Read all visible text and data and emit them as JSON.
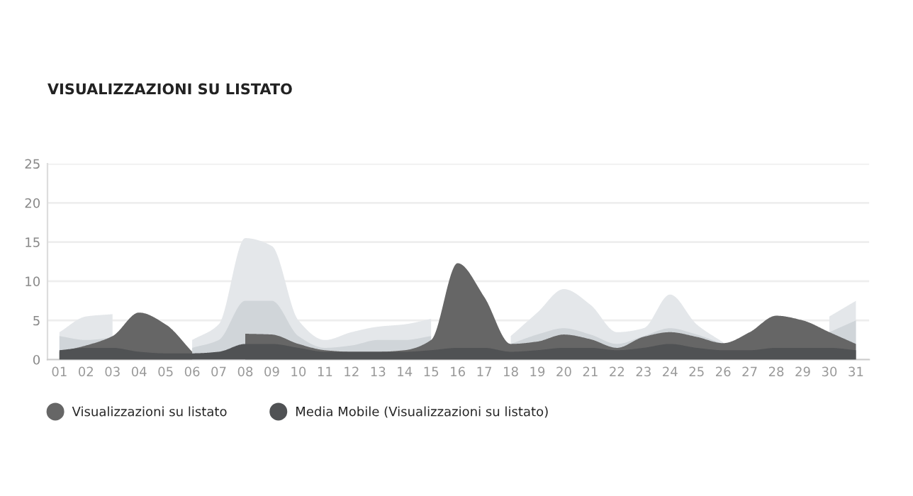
{
  "chart_data": {
    "type": "area",
    "title": "VISUALIZZAZIONI SU LISTATO",
    "categories": [
      "01",
      "02",
      "03",
      "04",
      "05",
      "06",
      "07",
      "08",
      "09",
      "10",
      "11",
      "12",
      "13",
      "14",
      "15",
      "16",
      "17",
      "18",
      "19",
      "20",
      "21",
      "22",
      "23",
      "24",
      "25",
      "26",
      "27",
      "28",
      "29",
      "30",
      "31"
    ],
    "series": [
      {
        "color": "#e4e7ea",
        "values": [
          3.5,
          5.5,
          5.8,
          null,
          null,
          2.5,
          4.5,
          15.5,
          14.5,
          5,
          2.5,
          3.5,
          4.2,
          4.5,
          5.2,
          null,
          null,
          3,
          6,
          9,
          7,
          3.5,
          4,
          8.3,
          4.5,
          2.2,
          null,
          null,
          null,
          5.5,
          7.5
        ]
      },
      {
        "color": "#d0d5d9",
        "values": [
          3,
          2.5,
          2.8,
          null,
          null,
          1.5,
          2.5,
          7.5,
          7.5,
          3,
          1.5,
          1.8,
          2.5,
          2.5,
          3,
          null,
          null,
          2,
          3.2,
          4,
          3.2,
          2,
          3,
          4,
          3.2,
          2,
          null,
          null,
          null,
          3.5,
          5
        ]
      },
      {
        "name": "Visualizzazioni su listato",
        "color": "#666666",
        "values": [
          1,
          1.8,
          3,
          6,
          4.5,
          1,
          null,
          3.3,
          3.2,
          2,
          1.2,
          1,
          1,
          1.2,
          2.5,
          12.3,
          8,
          2,
          2.3,
          3.2,
          2.6,
          1.5,
          2.9,
          3.5,
          2.9,
          2.1,
          3.5,
          5.6,
          5,
          3.5,
          2
        ]
      },
      {
        "name": "Media Mobile (Visualizzazioni su listato)",
        "color": "#505254",
        "values": [
          1.2,
          1.5,
          1.5,
          1,
          0.8,
          0.8,
          1,
          2,
          2,
          1.5,
          1,
          1,
          1,
          1,
          1.2,
          1.5,
          1.5,
          1,
          1.2,
          1.5,
          1.5,
          1.2,
          1.5,
          2,
          1.5,
          1.2,
          1.2,
          1.5,
          1.5,
          1.5,
          1.2
        ]
      }
    ],
    "ylim": [
      0,
      25
    ],
    "yticks": [
      0,
      5,
      10,
      15,
      20,
      25
    ],
    "grid": "y",
    "legend": "bottom left"
  }
}
